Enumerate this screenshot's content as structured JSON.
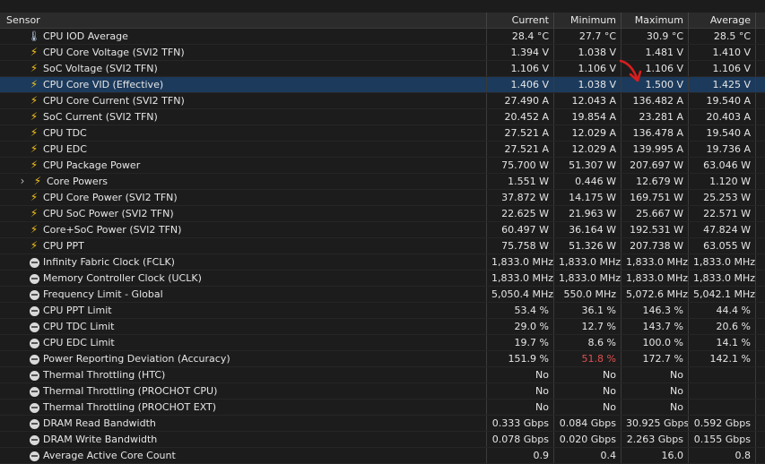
{
  "header": {
    "sensor": "Sensor",
    "current": "Current",
    "minimum": "Minimum",
    "maximum": "Maximum",
    "average": "Average"
  },
  "rows": [
    {
      "name": "CPU IOD Average",
      "icon": "thermometer-icon",
      "current": "28.4 °C",
      "minimum": "27.7 °C",
      "maximum": "30.9 °C",
      "average": "28.5 °C"
    },
    {
      "name": "CPU Core Voltage (SVI2 TFN)",
      "icon": "lightning-icon",
      "current": "1.394 V",
      "minimum": "1.038 V",
      "maximum": "1.481 V",
      "average": "1.410 V"
    },
    {
      "name": "SoC Voltage (SVI2 TFN)",
      "icon": "lightning-icon",
      "current": "1.106 V",
      "minimum": "1.106 V",
      "maximum": "1.106 V",
      "average": "1.106 V"
    },
    {
      "name": "CPU Core VID (Effective)",
      "icon": "lightning-icon",
      "current": "1.406 V",
      "minimum": "1.038 V",
      "maximum": "1.500 V",
      "average": "1.425 V"
    },
    {
      "name": "CPU Core Current (SVI2 TFN)",
      "icon": "lightning-icon",
      "current": "27.490 A",
      "minimum": "12.043 A",
      "maximum": "136.482 A",
      "average": "19.540 A"
    },
    {
      "name": "SoC Current (SVI2 TFN)",
      "icon": "lightning-icon",
      "current": "20.452 A",
      "minimum": "19.854 A",
      "maximum": "23.281 A",
      "average": "20.403 A"
    },
    {
      "name": "CPU TDC",
      "icon": "lightning-icon",
      "current": "27.521 A",
      "minimum": "12.029 A",
      "maximum": "136.478 A",
      "average": "19.540 A"
    },
    {
      "name": "CPU EDC",
      "icon": "lightning-icon",
      "current": "27.521 A",
      "minimum": "12.029 A",
      "maximum": "139.995 A",
      "average": "19.736 A"
    },
    {
      "name": "CPU Package Power",
      "icon": "lightning-icon",
      "current": "75.700 W",
      "minimum": "51.307 W",
      "maximum": "207.697 W",
      "average": "63.046 W"
    },
    {
      "name": "Core Powers",
      "icon": "lightning-icon",
      "current": "1.551 W",
      "minimum": "0.446 W",
      "maximum": "12.679 W",
      "average": "1.120 W"
    },
    {
      "name": "CPU Core Power (SVI2 TFN)",
      "icon": "lightning-icon",
      "current": "37.872 W",
      "minimum": "14.175 W",
      "maximum": "169.751 W",
      "average": "25.253 W"
    },
    {
      "name": "CPU SoC Power (SVI2 TFN)",
      "icon": "lightning-icon",
      "current": "22.625 W",
      "minimum": "21.963 W",
      "maximum": "25.667 W",
      "average": "22.571 W"
    },
    {
      "name": "Core+SoC Power (SVI2 TFN)",
      "icon": "lightning-icon",
      "current": "60.497 W",
      "minimum": "36.164 W",
      "maximum": "192.531 W",
      "average": "47.824 W"
    },
    {
      "name": "CPU PPT",
      "icon": "lightning-icon",
      "current": "75.758 W",
      "minimum": "51.326 W",
      "maximum": "207.738 W",
      "average": "63.055 W"
    },
    {
      "name": "Infinity Fabric Clock (FCLK)",
      "icon": "clock-icon",
      "current": "1,833.0 MHz",
      "minimum": "1,833.0 MHz",
      "maximum": "1,833.0 MHz",
      "average": "1,833.0 MHz"
    },
    {
      "name": "Memory Controller Clock (UCLK)",
      "icon": "clock-icon",
      "current": "1,833.0 MHz",
      "minimum": "1,833.0 MHz",
      "maximum": "1,833.0 MHz",
      "average": "1,833.0 MHz"
    },
    {
      "name": "Frequency Limit - Global",
      "icon": "clock-icon",
      "current": "5,050.4 MHz",
      "minimum": "550.0 MHz",
      "maximum": "5,072.6 MHz",
      "average": "5,042.1 MHz"
    },
    {
      "name": "CPU PPT Limit",
      "icon": "clock-icon",
      "current": "53.4 %",
      "minimum": "36.1 %",
      "maximum": "146.3 %",
      "average": "44.4 %"
    },
    {
      "name": "CPU TDC Limit",
      "icon": "clock-icon",
      "current": "29.0 %",
      "minimum": "12.7 %",
      "maximum": "143.7 %",
      "average": "20.6 %"
    },
    {
      "name": "CPU EDC Limit",
      "icon": "clock-icon",
      "current": "19.7 %",
      "minimum": "8.6 %",
      "maximum": "100.0 %",
      "average": "14.1 %"
    },
    {
      "name": "Power Reporting Deviation (Accuracy)",
      "icon": "clock-icon",
      "current": "151.9 %",
      "minimum": "51.8 %",
      "maximum": "172.7 %",
      "average": "142.1 %"
    },
    {
      "name": "Thermal Throttling (HTC)",
      "icon": "clock-icon",
      "current": "No",
      "minimum": "No",
      "maximum": "No",
      "average": ""
    },
    {
      "name": "Thermal Throttling (PROCHOT CPU)",
      "icon": "clock-icon",
      "current": "No",
      "minimum": "No",
      "maximum": "No",
      "average": ""
    },
    {
      "name": "Thermal Throttling (PROCHOT EXT)",
      "icon": "clock-icon",
      "current": "No",
      "minimum": "No",
      "maximum": "No",
      "average": ""
    },
    {
      "name": "DRAM Read Bandwidth",
      "icon": "clock-icon",
      "current": "0.333 Gbps",
      "minimum": "0.084 Gbps",
      "maximum": "30.925 Gbps",
      "average": "0.592 Gbps"
    },
    {
      "name": "DRAM Write Bandwidth",
      "icon": "clock-icon",
      "current": "0.078 Gbps",
      "minimum": "0.020 Gbps",
      "maximum": "2.263 Gbps",
      "average": "0.155 Gbps"
    },
    {
      "name": "Average Active Core Count",
      "icon": "clock-icon",
      "current": "0.9",
      "minimum": "0.4",
      "maximum": "16.0",
      "average": "0.8"
    }
  ],
  "colors": {
    "warning": "#e05050",
    "selected_row": "#1c3a5c",
    "annotation_arrow": "#d81e1e"
  }
}
